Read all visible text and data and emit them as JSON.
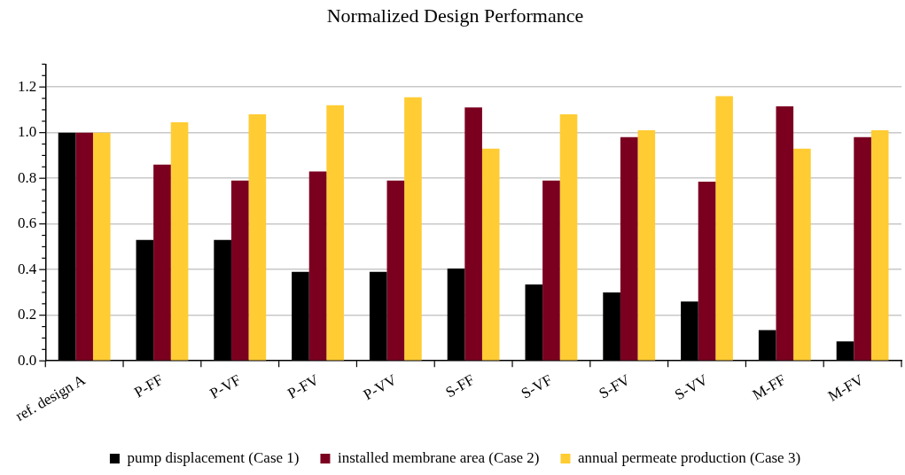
{
  "chart_data": {
    "type": "bar",
    "title": "Normalized Design Performance",
    "categories": [
      "ref. design A",
      "P-FF",
      "P-VF",
      "P-FV",
      "P-VV",
      "S-FF",
      "S-VF",
      "S-FV",
      "S-VV",
      "M-FF",
      "M-FV"
    ],
    "series": [
      {
        "name": "pump displacement (Case 1)",
        "color": "#000000",
        "values": [
          1.0,
          0.53,
          0.53,
          0.39,
          0.39,
          0.405,
          0.335,
          0.3,
          0.26,
          0.135,
          0.085
        ]
      },
      {
        "name": "installed membrane area (Case 2)",
        "color": "#7b0020",
        "values": [
          1.0,
          0.86,
          0.79,
          0.83,
          0.79,
          1.11,
          0.79,
          0.98,
          0.785,
          1.115,
          0.98
        ]
      },
      {
        "name": "annual permeate production (Case 3)",
        "color": "#ffcc33",
        "values": [
          1.0,
          1.045,
          1.08,
          1.12,
          1.155,
          0.93,
          1.08,
          1.01,
          1.16,
          0.93,
          1.01
        ]
      }
    ],
    "ylim": [
      0,
      1.3
    ],
    "yticks": [
      {
        "value": 0,
        "label": "0.0"
      },
      {
        "value": 0.05,
        "label": null
      },
      {
        "value": 0.1,
        "label": null
      },
      {
        "value": 0.15,
        "label": null
      },
      {
        "value": 0.2,
        "label": "0.2"
      },
      {
        "value": 0.25,
        "label": null
      },
      {
        "value": 0.3,
        "label": null
      },
      {
        "value": 0.35,
        "label": null
      },
      {
        "value": 0.4,
        "label": "0.4"
      },
      {
        "value": 0.45,
        "label": null
      },
      {
        "value": 0.5,
        "label": null
      },
      {
        "value": 0.55,
        "label": null
      },
      {
        "value": 0.6,
        "label": "0.6"
      },
      {
        "value": 0.65,
        "label": null
      },
      {
        "value": 0.7,
        "label": null
      },
      {
        "value": 0.75,
        "label": null
      },
      {
        "value": 0.8,
        "label": "0.8"
      },
      {
        "value": 0.85,
        "label": null
      },
      {
        "value": 0.9,
        "label": null
      },
      {
        "value": 0.95,
        "label": null
      },
      {
        "value": 1.0,
        "label": "1.0"
      },
      {
        "value": 1.05,
        "label": null
      },
      {
        "value": 1.1,
        "label": null
      },
      {
        "value": 1.15,
        "label": null
      },
      {
        "value": 1.2,
        "label": "1.2"
      },
      {
        "value": 1.25,
        "label": null
      },
      {
        "value": 1.3,
        "label": null
      }
    ],
    "grid": "y",
    "legend": "bottom"
  }
}
